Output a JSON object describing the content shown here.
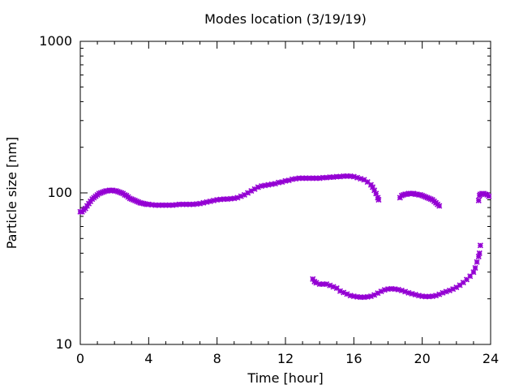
{
  "chart_data": {
    "type": "scatter",
    "title": "Modes location (3/19/19)",
    "xlabel": "Time [hour]",
    "ylabel": "Particle size [nm]",
    "xlim": [
      0,
      24
    ],
    "ylim": [
      10,
      1000
    ],
    "yscale": "log",
    "x_ticks": [
      "0",
      "4",
      "8",
      "12",
      "16",
      "20",
      "24"
    ],
    "y_ticks": [
      "10",
      "100",
      "1000"
    ],
    "grid": false,
    "marker_color": "#9400d3",
    "series": [
      {
        "points": [
          [
            0.0,
            75
          ],
          [
            0.1,
            75
          ],
          [
            0.2,
            77
          ],
          [
            0.3,
            79
          ],
          [
            0.4,
            82
          ],
          [
            0.5,
            85
          ],
          [
            0.6,
            88
          ],
          [
            0.7,
            91
          ],
          [
            0.8,
            93
          ],
          [
            0.9,
            95
          ],
          [
            1.0,
            97
          ],
          [
            1.1,
            99
          ],
          [
            1.2,
            100
          ],
          [
            1.3,
            101
          ],
          [
            1.4,
            102
          ],
          [
            1.5,
            103
          ],
          [
            1.6,
            103
          ],
          [
            1.7,
            104
          ],
          [
            1.8,
            104
          ],
          [
            1.9,
            104
          ],
          [
            2.0,
            103
          ],
          [
            2.1,
            103
          ],
          [
            2.2,
            102
          ],
          [
            2.3,
            101
          ],
          [
            2.4,
            100
          ],
          [
            2.5,
            99
          ],
          [
            2.6,
            97
          ],
          [
            2.7,
            96
          ],
          [
            2.8,
            94
          ],
          [
            2.9,
            92
          ],
          [
            3.0,
            91
          ],
          [
            3.1,
            90
          ],
          [
            3.2,
            89
          ],
          [
            3.3,
            88
          ],
          [
            3.4,
            87
          ],
          [
            3.5,
            86
          ],
          [
            3.6,
            85.5
          ],
          [
            3.7,
            85
          ],
          [
            3.8,
            84.5
          ],
          [
            3.9,
            84
          ],
          [
            4.0,
            84
          ],
          [
            4.2,
            83.5
          ],
          [
            4.4,
            83
          ],
          [
            4.6,
            83
          ],
          [
            4.8,
            83
          ],
          [
            5.0,
            83
          ],
          [
            5.2,
            83
          ],
          [
            5.4,
            83
          ],
          [
            5.6,
            83.5
          ],
          [
            5.8,
            84
          ],
          [
            6.0,
            84
          ],
          [
            6.2,
            84
          ],
          [
            6.4,
            84
          ],
          [
            6.6,
            84
          ],
          [
            6.8,
            84.5
          ],
          [
            7.0,
            85
          ],
          [
            7.2,
            86
          ],
          [
            7.4,
            87
          ],
          [
            7.6,
            88
          ],
          [
            7.8,
            89
          ],
          [
            8.0,
            90
          ],
          [
            8.2,
            90.5
          ],
          [
            8.4,
            91
          ],
          [
            8.6,
            91
          ],
          [
            8.8,
            91.5
          ],
          [
            9.0,
            92
          ],
          [
            9.2,
            93
          ],
          [
            9.4,
            95
          ],
          [
            9.6,
            97
          ],
          [
            9.8,
            100
          ],
          [
            10.0,
            103
          ],
          [
            10.2,
            106
          ],
          [
            10.4,
            109
          ],
          [
            10.6,
            111
          ],
          [
            10.8,
            112
          ],
          [
            11.0,
            113
          ],
          [
            11.2,
            114
          ],
          [
            11.4,
            115
          ],
          [
            11.6,
            117
          ],
          [
            11.8,
            118
          ],
          [
            12.0,
            120
          ],
          [
            12.2,
            121
          ],
          [
            12.4,
            123
          ],
          [
            12.6,
            124
          ],
          [
            12.8,
            125
          ],
          [
            13.0,
            125
          ],
          [
            13.2,
            125
          ],
          [
            13.4,
            125
          ],
          [
            13.6,
            125
          ],
          [
            13.8,
            125
          ],
          [
            14.0,
            125
          ],
          [
            14.2,
            126
          ],
          [
            14.4,
            126
          ],
          [
            14.6,
            127
          ],
          [
            14.8,
            127
          ],
          [
            15.0,
            128
          ],
          [
            15.2,
            128
          ],
          [
            15.4,
            129
          ],
          [
            15.6,
            129
          ],
          [
            15.8,
            129
          ],
          [
            16.0,
            128
          ],
          [
            16.2,
            126
          ],
          [
            16.4,
            124
          ],
          [
            16.6,
            122
          ],
          [
            16.8,
            118
          ],
          [
            17.0,
            113
          ],
          [
            17.1,
            109
          ],
          [
            17.2,
            104
          ],
          [
            17.3,
            99
          ],
          [
            17.4,
            93
          ],
          [
            17.45,
            90
          ]
        ]
      },
      {
        "points": [
          [
            18.7,
            93
          ],
          [
            18.8,
            96
          ],
          [
            18.9,
            97
          ],
          [
            19.0,
            98
          ],
          [
            19.1,
            98
          ],
          [
            19.2,
            99
          ],
          [
            19.3,
            99
          ],
          [
            19.4,
            99
          ],
          [
            19.5,
            99
          ],
          [
            19.6,
            98
          ],
          [
            19.7,
            98
          ],
          [
            19.8,
            97
          ],
          [
            19.9,
            97
          ],
          [
            20.0,
            96
          ],
          [
            20.1,
            95
          ],
          [
            20.2,
            94
          ],
          [
            20.3,
            93
          ],
          [
            20.4,
            92
          ],
          [
            20.5,
            91
          ],
          [
            20.6,
            90
          ],
          [
            20.7,
            88
          ],
          [
            20.8,
            86
          ],
          [
            20.9,
            84
          ],
          [
            21.0,
            82
          ]
        ]
      },
      {
        "points": [
          [
            23.3,
            89
          ],
          [
            23.35,
            96
          ],
          [
            23.4,
            98
          ],
          [
            23.5,
            99
          ],
          [
            23.6,
            99
          ],
          [
            23.7,
            98
          ],
          [
            23.8,
            97
          ],
          [
            23.9,
            95
          ]
        ]
      },
      {
        "points": [
          [
            13.6,
            27
          ],
          [
            13.7,
            26
          ],
          [
            13.8,
            25.5
          ],
          [
            14.0,
            25
          ],
          [
            14.2,
            25
          ],
          [
            14.4,
            25
          ],
          [
            14.6,
            24.5
          ],
          [
            14.8,
            24
          ],
          [
            15.0,
            23.5
          ],
          [
            15.2,
            22.5
          ],
          [
            15.4,
            22
          ],
          [
            15.6,
            21.5
          ],
          [
            15.8,
            21
          ],
          [
            16.0,
            20.8
          ],
          [
            16.2,
            20.6
          ],
          [
            16.4,
            20.5
          ],
          [
            16.6,
            20.5
          ],
          [
            16.8,
            20.6
          ],
          [
            17.0,
            20.8
          ],
          [
            17.2,
            21.2
          ],
          [
            17.4,
            21.8
          ],
          [
            17.6,
            22.4
          ],
          [
            17.8,
            22.9
          ],
          [
            18.0,
            23.2
          ],
          [
            18.2,
            23.3
          ],
          [
            18.4,
            23.2
          ],
          [
            18.6,
            23.0
          ],
          [
            18.8,
            22.7
          ],
          [
            19.0,
            22.3
          ],
          [
            19.2,
            21.9
          ],
          [
            19.4,
            21.6
          ],
          [
            19.6,
            21.3
          ],
          [
            19.8,
            21.0
          ],
          [
            20.0,
            20.8
          ],
          [
            20.2,
            20.7
          ],
          [
            20.4,
            20.7
          ],
          [
            20.6,
            20.8
          ],
          [
            20.8,
            21.0
          ],
          [
            21.0,
            21.4
          ],
          [
            21.2,
            21.9
          ],
          [
            21.4,
            22.3
          ],
          [
            21.6,
            22.7
          ],
          [
            21.8,
            23.2
          ],
          [
            22.0,
            23.8
          ],
          [
            22.2,
            24.6
          ],
          [
            22.4,
            25.6
          ],
          [
            22.6,
            26.8
          ],
          [
            22.8,
            28.2
          ],
          [
            23.0,
            30.0
          ],
          [
            23.1,
            32
          ],
          [
            23.2,
            35
          ],
          [
            23.3,
            38
          ],
          [
            23.35,
            40
          ],
          [
            23.4,
            45
          ]
        ]
      }
    ]
  }
}
